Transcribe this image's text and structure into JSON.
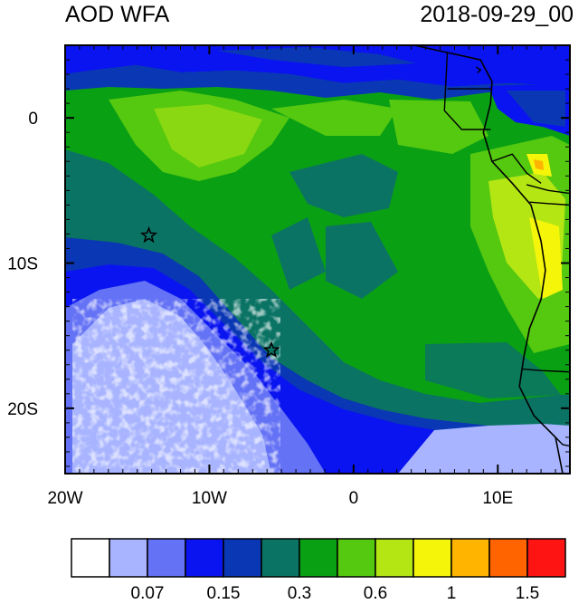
{
  "title": {
    "left": "AOD WFA",
    "right": "2018-09-29_00"
  },
  "axes": {
    "x_ticks": [
      {
        "lon": -20,
        "label": "20W"
      },
      {
        "lon": -10,
        "label": "10W"
      },
      {
        "lon": 0,
        "label": "0"
      },
      {
        "lon": 10,
        "label": "10E"
      }
    ],
    "y_ticks": [
      {
        "lat": 0,
        "label": "0"
      },
      {
        "lat": -10,
        "label": "10S"
      },
      {
        "lat": -20,
        "label": "20S"
      }
    ],
    "lon_range": [
      -20,
      15
    ],
    "lat_range": [
      -24.5,
      5
    ]
  },
  "colorbar": {
    "colors": [
      "#ffffff",
      "#a8b4ff",
      "#6472f5",
      "#0a14f0",
      "#0a37b4",
      "#0a7364",
      "#0aa014",
      "#55c810",
      "#b4e614",
      "#f5f50a",
      "#ffb400",
      "#ff6400",
      "#ff1414"
    ],
    "labels": [
      {
        "boundary": 2,
        "text": "0.07"
      },
      {
        "boundary": 4,
        "text": "0.15"
      },
      {
        "boundary": 6,
        "text": "0.3"
      },
      {
        "boundary": 8,
        "text": "0.6"
      },
      {
        "boundary": 10,
        "text": "1"
      },
      {
        "boundary": 12,
        "text": "1.5"
      }
    ]
  },
  "markers": [
    {
      "name": "star-marker-1",
      "lon": -14.2,
      "lat": -8.1
    },
    {
      "name": "star-marker-2",
      "lon": -5.7,
      "lat": -16.0
    }
  ],
  "coastline": [
    [
      4.2,
      5
    ],
    [
      6.5,
      4.5
    ],
    [
      8.8,
      4.0
    ],
    [
      9.6,
      2.5
    ],
    [
      9.5,
      1.0
    ],
    [
      9.0,
      -1.0
    ],
    [
      9.6,
      -3.0
    ],
    [
      11.0,
      -4.5
    ],
    [
      12.3,
      -6.0
    ],
    [
      13.0,
      -8.5
    ],
    [
      13.3,
      -10.5
    ],
    [
      13.0,
      -12.5
    ],
    [
      12.2,
      -14.5
    ],
    [
      11.8,
      -16.5
    ],
    [
      11.5,
      -18.5
    ],
    [
      12.5,
      -20.5
    ],
    [
      14.0,
      -22.0
    ],
    [
      14.5,
      -24.5
    ],
    [
      15,
      -24.5
    ],
    [
      15,
      5
    ]
  ],
  "borders": [
    [
      [
        6.5,
        4.5
      ],
      [
        6.3,
        0.5
      ],
      [
        7.5,
        -0.8
      ],
      [
        9.5,
        -0.8
      ]
    ],
    [
      [
        6.5,
        2.0
      ],
      [
        9.5,
        2.0
      ]
    ],
    [
      [
        9.6,
        -3.0
      ],
      [
        11.0,
        -2.5
      ],
      [
        12.0,
        -3.8
      ],
      [
        13.0,
        -4.5
      ]
    ],
    [
      [
        12.0,
        -4.6
      ],
      [
        13.5,
        -5.0
      ],
      [
        15,
        -5.2
      ]
    ],
    [
      [
        12.2,
        -5.8
      ],
      [
        13.5,
        -5.9
      ],
      [
        15,
        -6.0
      ]
    ],
    [
      [
        11.7,
        -17.3
      ],
      [
        13.0,
        -17.4
      ],
      [
        15,
        -17.5
      ]
    ],
    [
      [
        14.0,
        -22.0
      ],
      [
        14.5,
        -22.5
      ],
      [
        15,
        -22.6
      ]
    ],
    [
      [
        8.5,
        3.5
      ],
      [
        8.8,
        3.3
      ],
      [
        8.6,
        3.1
      ]
    ]
  ]
}
